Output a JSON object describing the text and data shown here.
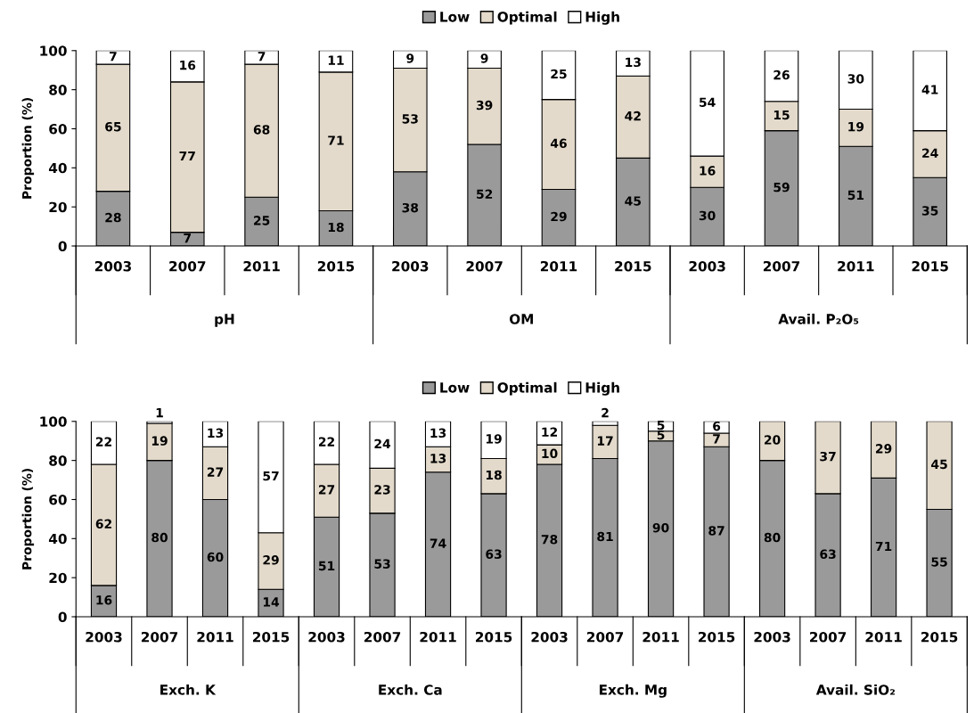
{
  "chart_data": [
    {
      "type": "bar",
      "stacked": true,
      "ylabel": "Proportion (%)",
      "ylim": [
        0,
        100
      ],
      "yticks": [
        0,
        20,
        40,
        60,
        80,
        100
      ],
      "grid": false,
      "legend": "top",
      "categories": [
        "2003",
        "2007",
        "2011",
        "2015",
        "2003",
        "2007",
        "2011",
        "2015",
        "2003",
        "2007",
        "2011",
        "2015"
      ],
      "annotations": [
        "pH",
        "OM",
        "Avail. P₂O₅"
      ],
      "series": [
        {
          "name": "Low",
          "color": "#9a9a9a",
          "values": [
            28,
            7,
            25,
            18,
            38,
            52,
            29,
            45,
            30,
            59,
            51,
            35
          ],
          "value_labels": [
            "28",
            "7",
            "25",
            "18",
            "38",
            "52",
            "29",
            "45",
            "30",
            "59",
            "51",
            "35"
          ]
        },
        {
          "name": "Optimal",
          "color": "#e3dacb",
          "values": [
            65,
            77,
            68,
            71,
            53,
            39,
            46,
            42,
            16,
            15,
            19,
            24
          ],
          "value_labels": [
            "65",
            "77",
            "68",
            "71",
            "53",
            "39",
            "46",
            "42",
            "16",
            "15",
            "19",
            "24"
          ]
        },
        {
          "name": "High",
          "color": "#ffffff",
          "values": [
            7,
            16,
            7,
            11,
            9,
            9,
            25,
            13,
            54,
            26,
            30,
            41
          ],
          "value_labels": [
            "7",
            "16",
            "7",
            "11",
            "9",
            "9",
            "25",
            "13",
            "54",
            "26",
            "30",
            "41"
          ]
        }
      ]
    },
    {
      "type": "bar",
      "stacked": true,
      "ylabel": "Proportion (%)",
      "ylim": [
        0,
        100
      ],
      "yticks": [
        0,
        20,
        40,
        60,
        80,
        100
      ],
      "grid": false,
      "legend": "top",
      "categories": [
        "2003",
        "2007",
        "2011",
        "2015",
        "2003",
        "2007",
        "2011",
        "2015",
        "2003",
        "2007",
        "2011",
        "2015",
        "2003",
        "2007",
        "2011",
        "2015"
      ],
      "annotations": [
        "Exch. K",
        "Exch. Ca",
        "Exch. Mg",
        "Avail. SiO₂"
      ],
      "series": [
        {
          "name": "Low",
          "color": "#9a9a9a",
          "values": [
            16,
            80,
            60,
            14,
            51,
            53,
            74,
            63,
            78,
            81,
            90,
            87,
            80,
            63,
            71,
            55
          ],
          "value_labels": [
            "16",
            "80",
            "60",
            "14",
            "51",
            "53",
            "74",
            "63",
            "78",
            "81",
            "90",
            "87",
            "80",
            "63",
            "71",
            "55"
          ]
        },
        {
          "name": "Optimal",
          "color": "#e3dacb",
          "values": [
            62,
            19,
            27,
            29,
            27,
            23,
            13,
            18,
            10,
            17,
            5,
            7,
            20,
            37,
            29,
            45
          ],
          "value_labels": [
            "62",
            "19",
            "27",
            "29",
            "27",
            "23",
            "13",
            "18",
            "10",
            "17",
            "5",
            "7",
            "20",
            "37",
            "29",
            "45"
          ]
        },
        {
          "name": "High",
          "color": "#ffffff",
          "values": [
            22,
            1,
            13,
            57,
            22,
            24,
            13,
            19,
            12,
            2,
            5,
            6,
            0,
            0,
            0,
            0
          ],
          "value_labels": [
            "22",
            "1",
            "13",
            "57",
            "22",
            "24",
            "13",
            "19",
            "12",
            "2",
            "5",
            "6",
            null,
            null,
            null,
            null
          ]
        }
      ]
    }
  ]
}
